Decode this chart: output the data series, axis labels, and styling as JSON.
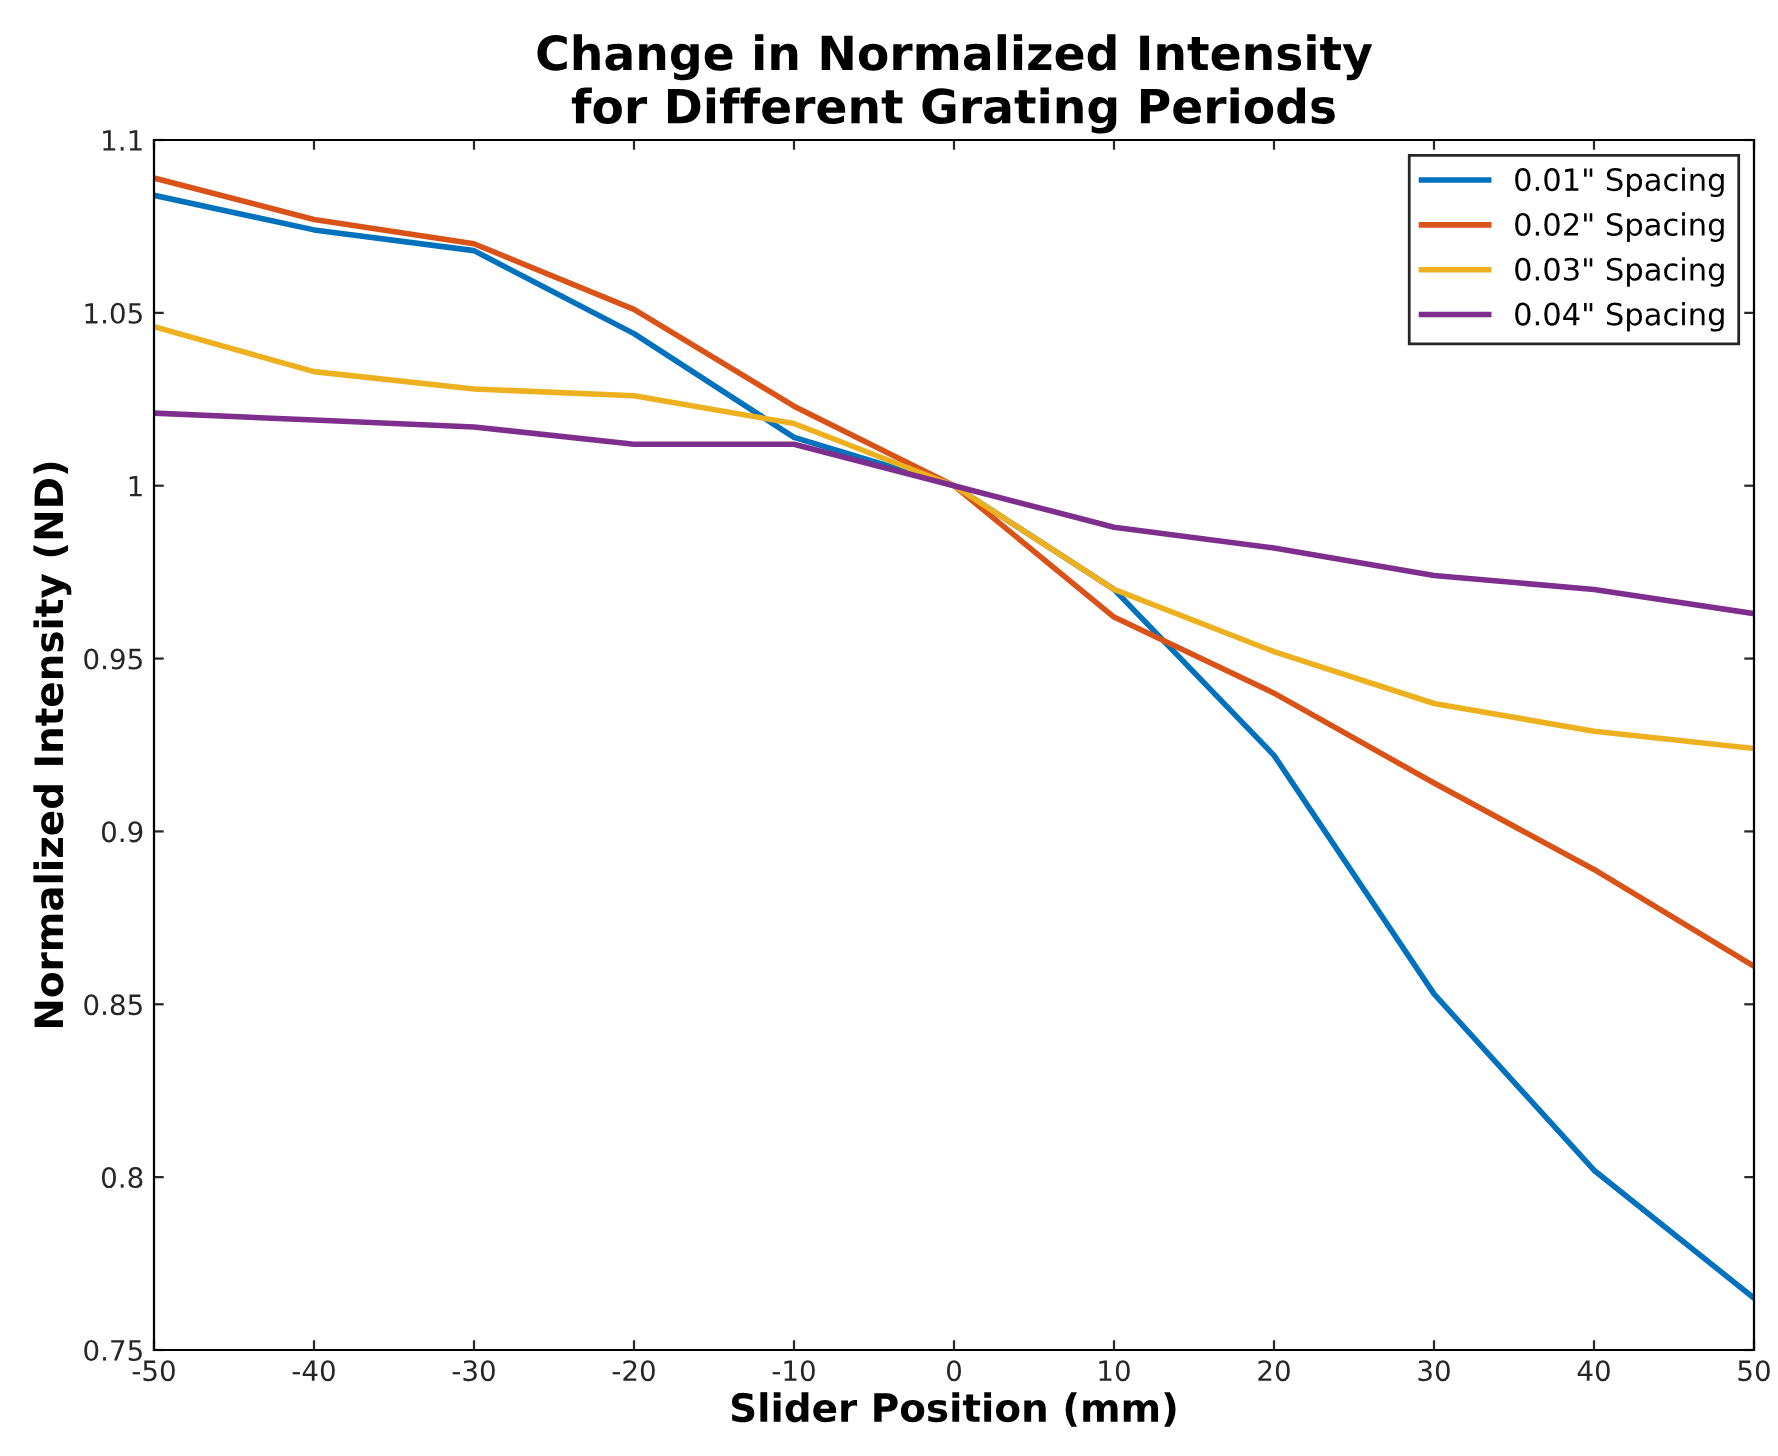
{
  "chart_data": {
    "type": "line",
    "title": "Change in Normalized Intensity\nfor Different Grating Periods",
    "xlabel": "Slider Position (mm)",
    "ylabel": "Normalized Intensity (ND)",
    "x": [
      -50,
      -40,
      -30,
      -20,
      -10,
      0,
      10,
      20,
      30,
      40,
      50
    ],
    "series": [
      {
        "name": "0.01\" Spacing",
        "color": "#0072bd",
        "values": [
          1.084,
          1.074,
          1.068,
          1.044,
          1.014,
          1.0,
          0.97,
          0.922,
          0.853,
          0.802,
          0.765
        ]
      },
      {
        "name": "0.02\" Spacing",
        "color": "#d95319",
        "values": [
          1.089,
          1.077,
          1.07,
          1.051,
          1.023,
          1.0,
          0.962,
          0.94,
          0.914,
          0.889,
          0.861
        ]
      },
      {
        "name": "0.03\" Spacing",
        "color": "#edb120",
        "values": [
          1.046,
          1.033,
          1.028,
          1.026,
          1.018,
          1.0,
          0.97,
          0.952,
          0.937,
          0.929,
          0.924
        ]
      },
      {
        "name": "0.04\" Spacing",
        "color": "#7e2f8e",
        "values": [
          1.021,
          1.019,
          1.017,
          1.012,
          1.012,
          1.0,
          0.988,
          0.982,
          0.974,
          0.97,
          0.963
        ]
      }
    ],
    "xlim": [
      -50,
      50
    ],
    "ylim": [
      0.75,
      1.1
    ],
    "xticks": [
      -50,
      -40,
      -30,
      -20,
      -10,
      0,
      10,
      20,
      30,
      40,
      50
    ],
    "yticks": [
      0.75,
      0.8,
      0.85,
      0.9,
      0.95,
      1,
      1.05,
      1.1
    ],
    "grid": false,
    "legend": "top right",
    "marker": "none",
    "line_style": "solid"
  }
}
